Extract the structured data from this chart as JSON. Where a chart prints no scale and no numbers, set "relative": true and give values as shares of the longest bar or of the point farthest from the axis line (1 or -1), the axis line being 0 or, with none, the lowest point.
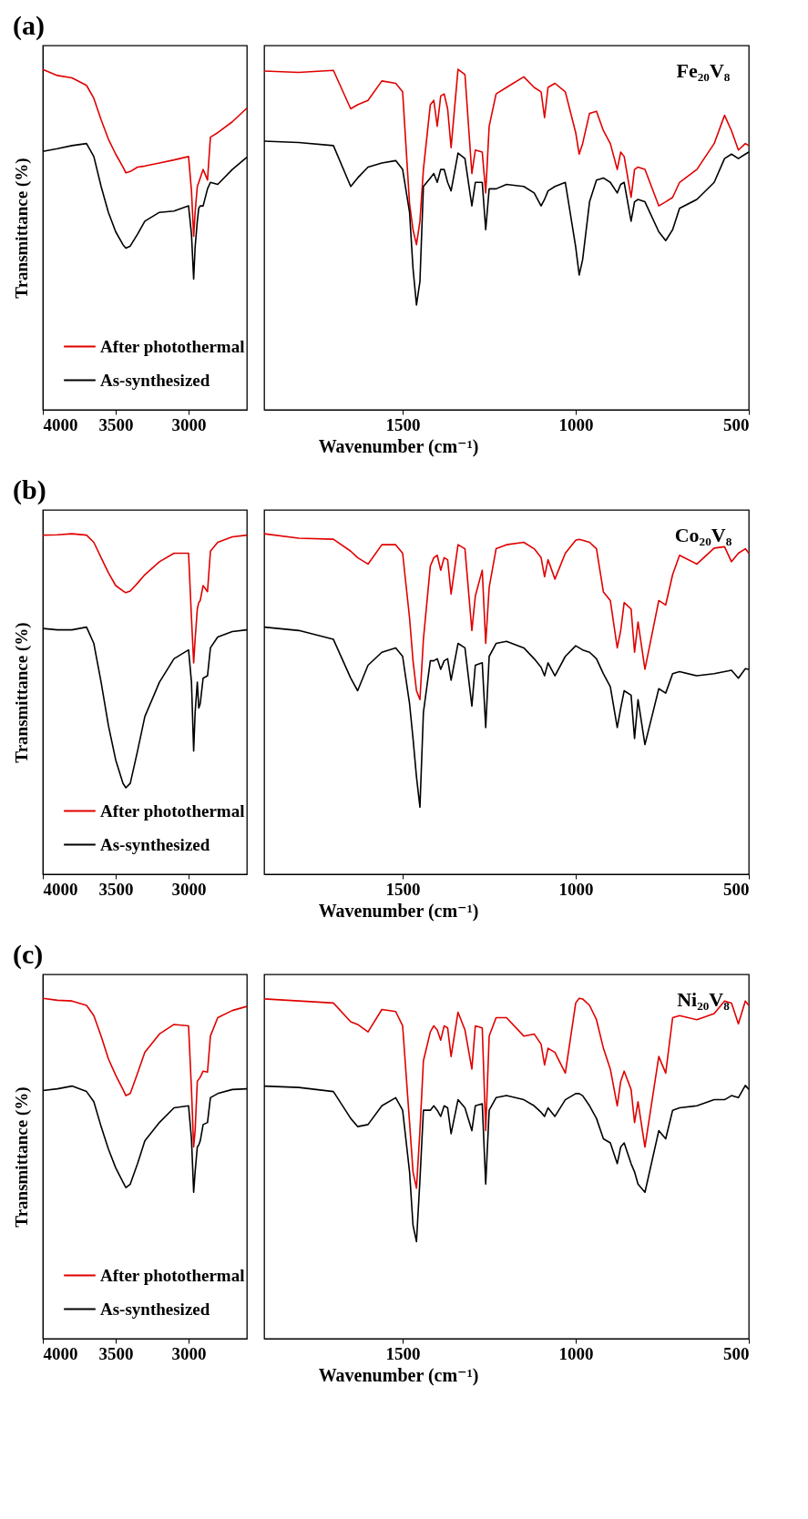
{
  "chart_data": [
    {
      "type": "line",
      "title": "(a)",
      "ylabel": "Transmittance (%)",
      "relative": true,
      "legend": "bottom left",
      "xlim": [
        4000,
        2600
      ],
      "xticks": [
        4000,
        3500,
        3000
      ],
      "x": [
        4000,
        3900,
        3800,
        3700,
        3650,
        3600,
        3550,
        3500,
        3450,
        3430,
        3400,
        3350,
        3300,
        3200,
        3100,
        3000,
        2980,
        2965,
        2955,
        2940,
        2930,
        2920,
        2900,
        2870,
        2850,
        2800,
        2700,
        2600
      ],
      "series": [
        {
          "name": "After photothermal",
          "color": "#e00000",
          "values": [
            1.0,
            0.982,
            0.975,
            0.953,
            0.915,
            0.852,
            0.795,
            0.751,
            0.713,
            0.696,
            0.7,
            0.713,
            0.716,
            0.725,
            0.734,
            0.744,
            0.643,
            0.51,
            0.58,
            0.656,
            0.668,
            0.681,
            0.706,
            0.675,
            0.801,
            0.814,
            0.846,
            0.886
          ]
        },
        {
          "name": "As-synthesized",
          "color": "#000000",
          "values": [
            0.759,
            0.767,
            0.776,
            0.782,
            0.744,
            0.656,
            0.58,
            0.523,
            0.485,
            0.475,
            0.481,
            0.516,
            0.554,
            0.58,
            0.584,
            0.599,
            0.516,
            0.384,
            0.478,
            0.554,
            0.592,
            0.599,
            0.599,
            0.649,
            0.668,
            0.662,
            0.706,
            0.742
          ]
        }
      ]
    },
    {
      "type": "line",
      "annotations": [
        "Fe₂₀V₈"
      ],
      "xlabel": "Wavenumber (cm⁻¹)",
      "relative": true,
      "xlim": [
        1900,
        500
      ],
      "xticks": [
        1500,
        1000,
        500
      ],
      "x": [
        1900,
        1800,
        1700,
        1650,
        1630,
        1600,
        1560,
        1520,
        1500,
        1480,
        1470,
        1460,
        1450,
        1440,
        1420,
        1410,
        1400,
        1390,
        1380,
        1370,
        1360,
        1340,
        1320,
        1300,
        1290,
        1270,
        1260,
        1250,
        1230,
        1200,
        1150,
        1120,
        1100,
        1090,
        1080,
        1060,
        1030,
        1000,
        990,
        980,
        960,
        940,
        920,
        900,
        880,
        870,
        860,
        840,
        830,
        820,
        800,
        760,
        740,
        720,
        700,
        650,
        600,
        570,
        550,
        530,
        510,
        500
      ],
      "series": [
        {
          "color": "#e00000",
          "values": [
            0.995,
            0.991,
            0.997,
            0.884,
            0.896,
            0.909,
            0.966,
            0.959,
            0.934,
            0.605,
            0.529,
            0.485,
            0.554,
            0.706,
            0.896,
            0.909,
            0.833,
            0.922,
            0.928,
            0.884,
            0.77,
            1.0,
            0.985,
            0.694,
            0.763,
            0.757,
            0.637,
            0.833,
            0.928,
            0.947,
            0.978,
            0.947,
            0.934,
            0.858,
            0.947,
            0.959,
            0.934,
            0.814,
            0.751,
            0.782,
            0.871,
            0.877,
            0.82,
            0.782,
            0.706,
            0.757,
            0.744,
            0.624,
            0.706,
            0.713,
            0.706,
            0.599,
            0.611,
            0.624,
            0.668,
            0.706,
            0.782,
            0.865,
            0.82,
            0.763,
            0.782,
            0.776
          ]
        },
        {
          "color": "#000000",
          "values": [
            0.789,
            0.785,
            0.776,
            0.656,
            0.681,
            0.713,
            0.725,
            0.732,
            0.706,
            0.58,
            0.415,
            0.308,
            0.377,
            0.656,
            0.681,
            0.694,
            0.668,
            0.706,
            0.706,
            0.668,
            0.643,
            0.754,
            0.738,
            0.599,
            0.668,
            0.668,
            0.529,
            0.649,
            0.649,
            0.662,
            0.656,
            0.637,
            0.599,
            0.618,
            0.643,
            0.656,
            0.668,
            0.478,
            0.396,
            0.441,
            0.611,
            0.675,
            0.681,
            0.668,
            0.637,
            0.662,
            0.668,
            0.554,
            0.611,
            0.618,
            0.611,
            0.523,
            0.497,
            0.529,
            0.592,
            0.618,
            0.668,
            0.738,
            0.751,
            0.738,
            0.751,
            0.757
          ]
        }
      ]
    },
    {
      "type": "line",
      "title": "(b)",
      "ylabel": "Transmittance (%)",
      "relative": true,
      "legend": "bottom left",
      "xlim": [
        4000,
        2600
      ],
      "xticks": [
        4000,
        3500,
        3000
      ],
      "x": [
        4000,
        3900,
        3800,
        3700,
        3650,
        3600,
        3550,
        3500,
        3450,
        3430,
        3400,
        3350,
        3300,
        3200,
        3100,
        3000,
        2980,
        2965,
        2955,
        2940,
        2930,
        2920,
        2900,
        2870,
        2850,
        2800,
        2700,
        2600
      ],
      "series": [
        {
          "name": "After photothermal",
          "color": "#e00000",
          "values": [
            0.996,
            0.997,
            1.0,
            0.996,
            0.975,
            0.93,
            0.886,
            0.848,
            0.832,
            0.827,
            0.832,
            0.855,
            0.88,
            0.918,
            0.943,
            0.943,
            0.753,
            0.621,
            0.69,
            0.779,
            0.798,
            0.804,
            0.848,
            0.83,
            0.949,
            0.975,
            0.991,
            0.996
          ]
        },
        {
          "name": "As-synthesized",
          "color": "#000000",
          "values": [
            0.722,
            0.718,
            0.718,
            0.726,
            0.678,
            0.564,
            0.437,
            0.336,
            0.267,
            0.254,
            0.267,
            0.362,
            0.463,
            0.564,
            0.633,
            0.659,
            0.564,
            0.362,
            0.475,
            0.564,
            0.488,
            0.501,
            0.576,
            0.583,
            0.665,
            0.697,
            0.713,
            0.718
          ]
        }
      ]
    },
    {
      "type": "line",
      "annotations": [
        "Co₂₀V₈"
      ],
      "xlabel": "Wavenumber (cm⁻¹)",
      "relative": true,
      "xlim": [
        1900,
        500
      ],
      "xticks": [
        1500,
        1000,
        500
      ],
      "x": [
        1900,
        1800,
        1700,
        1650,
        1630,
        1600,
        1560,
        1520,
        1500,
        1480,
        1470,
        1460,
        1450,
        1440,
        1420,
        1410,
        1400,
        1390,
        1380,
        1370,
        1360,
        1340,
        1320,
        1300,
        1290,
        1270,
        1260,
        1250,
        1230,
        1200,
        1150,
        1120,
        1100,
        1090,
        1080,
        1060,
        1030,
        1000,
        990,
        980,
        960,
        940,
        920,
        900,
        880,
        870,
        860,
        840,
        830,
        820,
        800,
        760,
        740,
        720,
        700,
        650,
        600,
        570,
        550,
        530,
        510,
        500
      ],
      "series": [
        {
          "color": "#e00000",
          "values": [
            1.0,
            0.987,
            0.984,
            0.949,
            0.93,
            0.911,
            0.968,
            0.968,
            0.943,
            0.753,
            0.627,
            0.539,
            0.513,
            0.69,
            0.905,
            0.93,
            0.937,
            0.893,
            0.93,
            0.924,
            0.823,
            0.968,
            0.956,
            0.716,
            0.817,
            0.893,
            0.678,
            0.842,
            0.956,
            0.968,
            0.975,
            0.956,
            0.93,
            0.874,
            0.924,
            0.867,
            0.943,
            0.981,
            0.984,
            0.981,
            0.975,
            0.956,
            0.829,
            0.804,
            0.665,
            0.716,
            0.798,
            0.779,
            0.652,
            0.741,
            0.602,
            0.804,
            0.791,
            0.88,
            0.937,
            0.911,
            0.958,
            0.962,
            0.918,
            0.943,
            0.956,
            0.943
          ]
        },
        {
          "color": "#000000",
          "values": [
            0.726,
            0.716,
            0.69,
            0.576,
            0.539,
            0.614,
            0.652,
            0.665,
            0.64,
            0.501,
            0.399,
            0.286,
            0.197,
            0.475,
            0.627,
            0.627,
            0.633,
            0.602,
            0.627,
            0.633,
            0.57,
            0.678,
            0.665,
            0.494,
            0.614,
            0.621,
            0.431,
            0.64,
            0.678,
            0.684,
            0.665,
            0.633,
            0.608,
            0.583,
            0.621,
            0.583,
            0.64,
            0.671,
            0.665,
            0.659,
            0.652,
            0.633,
            0.589,
            0.551,
            0.431,
            0.488,
            0.539,
            0.526,
            0.399,
            0.513,
            0.381,
            0.545,
            0.532,
            0.589,
            0.595,
            0.583,
            0.589,
            0.595,
            0.599,
            0.576,
            0.604,
            0.602
          ]
        }
      ]
    },
    {
      "type": "line",
      "title": "(c)",
      "ylabel": "Transmittance (%)",
      "relative": true,
      "legend": "bottom left",
      "xlim": [
        4000,
        2600
      ],
      "xticks": [
        4000,
        3500,
        3000
      ],
      "x": [
        4000,
        3900,
        3800,
        3700,
        3650,
        3600,
        3550,
        3500,
        3450,
        3430,
        3400,
        3350,
        3300,
        3200,
        3100,
        3000,
        2980,
        2965,
        2955,
        2940,
        2930,
        2920,
        2900,
        2870,
        2850,
        2800,
        2700,
        2600
      ],
      "series": [
        {
          "name": "After photothermal",
          "color": "#e00000",
          "values": [
            1.0,
            0.994,
            0.992,
            0.979,
            0.949,
            0.889,
            0.822,
            0.774,
            0.732,
            0.714,
            0.72,
            0.78,
            0.841,
            0.895,
            0.923,
            0.919,
            0.732,
            0.563,
            0.611,
            0.756,
            0.762,
            0.768,
            0.786,
            0.783,
            0.889,
            0.943,
            0.964,
            0.976
          ]
        },
        {
          "name": "As-synthesized",
          "color": "#000000",
          "values": [
            0.729,
            0.734,
            0.742,
            0.726,
            0.696,
            0.623,
            0.557,
            0.502,
            0.46,
            0.444,
            0.454,
            0.514,
            0.581,
            0.635,
            0.678,
            0.684,
            0.587,
            0.43,
            0.49,
            0.563,
            0.569,
            0.581,
            0.629,
            0.635,
            0.708,
            0.72,
            0.732,
            0.734
          ]
        }
      ]
    },
    {
      "type": "line",
      "annotations": [
        "Ni₂₀V₈"
      ],
      "xlabel": "Wavenumber (cm⁻¹)",
      "relative": true,
      "xlim": [
        1900,
        500
      ],
      "xticks": [
        1500,
        1000,
        500
      ],
      "x": [
        1900,
        1800,
        1700,
        1650,
        1630,
        1600,
        1560,
        1520,
        1500,
        1480,
        1470,
        1460,
        1450,
        1440,
        1420,
        1410,
        1400,
        1390,
        1380,
        1370,
        1360,
        1340,
        1320,
        1300,
        1290,
        1270,
        1260,
        1250,
        1230,
        1200,
        1150,
        1120,
        1100,
        1090,
        1080,
        1060,
        1030,
        1000,
        990,
        980,
        960,
        940,
        920,
        900,
        880,
        870,
        860,
        840,
        830,
        820,
        800,
        760,
        740,
        720,
        700,
        650,
        600,
        570,
        550,
        530,
        510,
        500
      ],
      "series": [
        {
          "color": "#e00000",
          "values": [
            0.998,
            0.992,
            0.986,
            0.931,
            0.923,
            0.901,
            0.967,
            0.961,
            0.919,
            0.635,
            0.49,
            0.442,
            0.611,
            0.816,
            0.901,
            0.919,
            0.907,
            0.877,
            0.919,
            0.913,
            0.829,
            0.959,
            0.907,
            0.792,
            0.919,
            0.913,
            0.611,
            0.889,
            0.943,
            0.943,
            0.889,
            0.895,
            0.865,
            0.804,
            0.853,
            0.841,
            0.78,
            0.986,
            1.0,
            0.998,
            0.979,
            0.937,
            0.853,
            0.792,
            0.684,
            0.756,
            0.786,
            0.732,
            0.635,
            0.696,
            0.563,
            0.829,
            0.78,
            0.943,
            0.949,
            0.937,
            0.955,
            0.992,
            0.986,
            0.925,
            0.992,
            0.979
          ]
        },
        {
          "color": "#000000",
          "values": [
            0.742,
            0.738,
            0.726,
            0.647,
            0.623,
            0.629,
            0.684,
            0.708,
            0.671,
            0.49,
            0.333,
            0.285,
            0.466,
            0.671,
            0.671,
            0.684,
            0.671,
            0.653,
            0.684,
            0.678,
            0.602,
            0.702,
            0.678,
            0.611,
            0.684,
            0.69,
            0.454,
            0.671,
            0.708,
            0.714,
            0.702,
            0.684,
            0.665,
            0.653,
            0.678,
            0.653,
            0.702,
            0.72,
            0.72,
            0.714,
            0.684,
            0.647,
            0.587,
            0.575,
            0.514,
            0.563,
            0.575,
            0.514,
            0.49,
            0.454,
            0.43,
            0.611,
            0.587,
            0.671,
            0.678,
            0.684,
            0.702,
            0.702,
            0.714,
            0.708,
            0.744,
            0.732
          ]
        }
      ]
    }
  ]
}
